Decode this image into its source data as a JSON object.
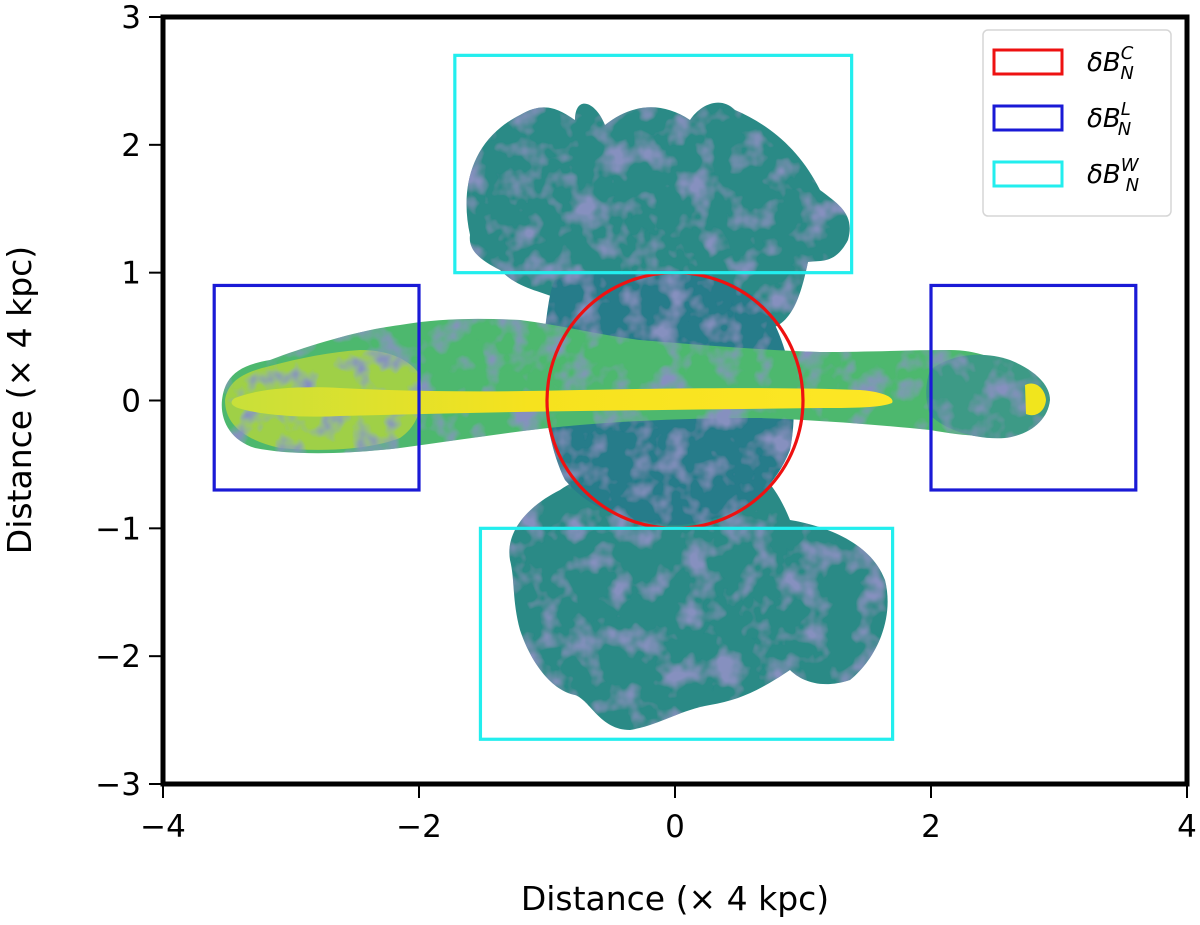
{
  "chart_data": {
    "type": "image_map",
    "xlabel": "Distance (× 4 kpc)",
    "ylabel": "Distance (× 4 kpc)",
    "xlim": [
      -4,
      4
    ],
    "ylim": [
      -3,
      3
    ],
    "xticks": [
      -4,
      -2,
      0,
      2,
      4
    ],
    "yticks": [
      -3,
      -2,
      -1,
      0,
      1,
      2,
      3
    ],
    "xtick_labels": [
      "−4",
      "−2",
      "0",
      "2",
      "4"
    ],
    "ytick_labels": [
      "−3",
      "−2",
      "−1",
      "0",
      "1",
      "2",
      "3"
    ],
    "grid": false,
    "legend_position": "top-right",
    "regions": [
      {
        "shape": "circle",
        "cx": 0,
        "cy": 0,
        "r": 1,
        "color": "#ee1111",
        "symbol": "δB",
        "sub": "N",
        "sup": "C"
      },
      {
        "shape": "rect",
        "x0": -3.6,
        "x1": -2.0,
        "y0": -0.7,
        "y1": 0.9,
        "color": "#1a1ad6",
        "symbol": "δB",
        "sub": "N",
        "sup": "L"
      },
      {
        "shape": "rect",
        "x0": 2.0,
        "x1": 3.6,
        "y0": -0.7,
        "y1": 0.9,
        "color": "#1a1ad6",
        "symbol": "δB",
        "sub": "N",
        "sup": "L"
      },
      {
        "shape": "rect",
        "x0": -1.72,
        "x1": 1.38,
        "y0": 1.0,
        "y1": 2.7,
        "color": "#22eeee",
        "symbol": "δB",
        "sub": "N",
        "sup": "W"
      },
      {
        "shape": "rect",
        "x0": -1.52,
        "x1": 1.7,
        "y0": -2.65,
        "y1": -1.0,
        "color": "#22eeee",
        "symbol": "δB",
        "sub": "N",
        "sup": "W"
      }
    ],
    "legend": [
      {
        "symbol": "δB",
        "sub": "N",
        "sup": "C",
        "color": "#ee1111"
      },
      {
        "symbol": "δB",
        "sub": "N",
        "sup": "L",
        "color": "#1a1ad6"
      },
      {
        "symbol": "δB",
        "sub": "N",
        "sup": "W",
        "color": "#22eeee"
      }
    ],
    "colormap": [
      "#440154",
      "#3b528b",
      "#21908d",
      "#5dc863",
      "#fde725"
    ]
  }
}
